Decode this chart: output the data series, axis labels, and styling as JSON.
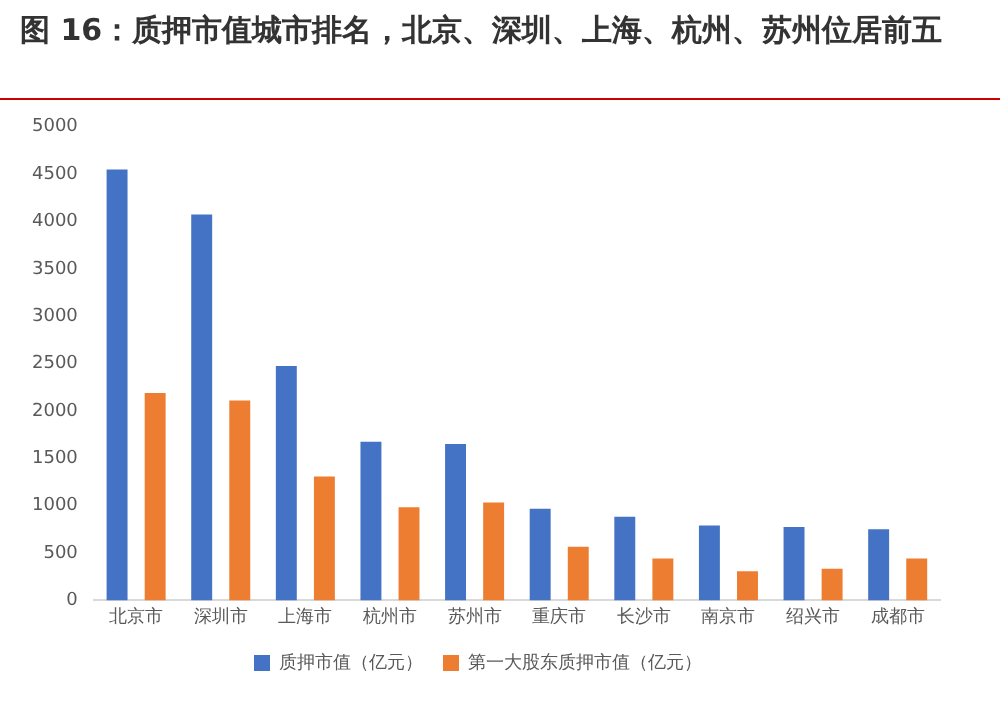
{
  "chart_data": {
    "type": "bar",
    "title": "图 16：质押市值城市排名，北京、深圳、上海、杭州、苏州位居前五",
    "categories": [
      "北京市",
      "深圳市",
      "上海市",
      "杭州市",
      "苏州市",
      "重庆市",
      "长沙市",
      "南京市",
      "绍兴市",
      "成都市"
    ],
    "series": [
      {
        "name": "质押市值（亿元）",
        "color": "#4472c4",
        "values": [
          4550,
          4075,
          2475,
          1675,
          1650,
          967,
          883,
          792,
          775,
          750
        ]
      },
      {
        "name": "第一大股东质押市值（亿元）",
        "color": "#ed7d31",
        "values": [
          2190,
          2110,
          1308,
          983,
          1033,
          567,
          442,
          308,
          333,
          442
        ]
      }
    ],
    "ylim": [
      0,
      5000
    ],
    "yticks": [
      0,
      500,
      1000,
      1500,
      2000,
      2500,
      3000,
      3500,
      4000,
      4500,
      5000
    ],
    "grid": false,
    "legend": "bottom"
  }
}
